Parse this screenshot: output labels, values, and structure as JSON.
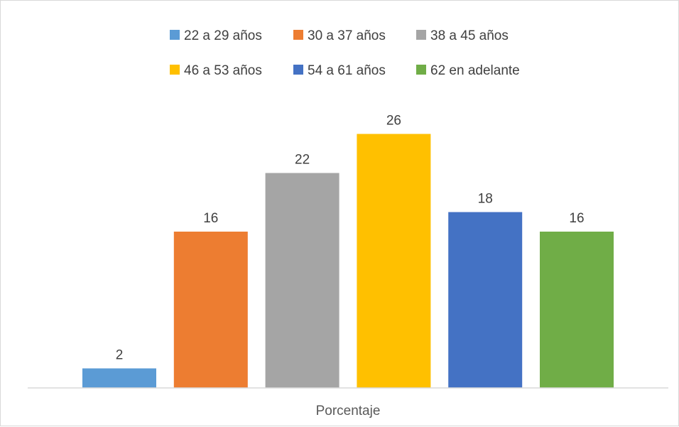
{
  "chart_data": {
    "type": "bar",
    "xlabel": "Porcentaje",
    "ylabel": "",
    "ylim": [
      0,
      28
    ],
    "grid": false,
    "legend_position": "top",
    "categories": [
      "Porcentaje"
    ],
    "series": [
      {
        "name": "22 a 29 años",
        "values": [
          2
        ],
        "color": "#5b9bd5"
      },
      {
        "name": "30 a 37 años",
        "values": [
          16
        ],
        "color": "#ed7d31"
      },
      {
        "name": "38 a 45 años",
        "values": [
          22
        ],
        "color": "#a5a5a5"
      },
      {
        "name": "46 a 53 años",
        "values": [
          26
        ],
        "color": "#ffc000"
      },
      {
        "name": "54 a 61 años",
        "values": [
          18
        ],
        "color": "#4472c4"
      },
      {
        "name": "62 en adelante",
        "values": [
          16
        ],
        "color": "#70ad47"
      }
    ]
  }
}
